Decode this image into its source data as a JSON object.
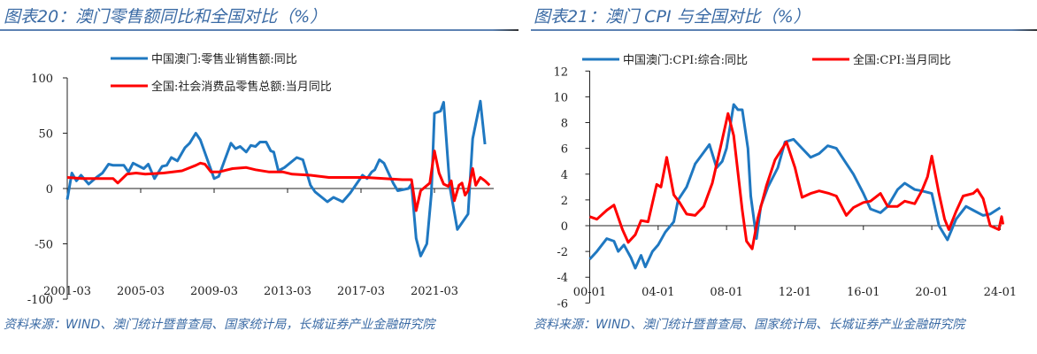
{
  "chart_data": [
    {
      "type": "line",
      "title": "图表20：澳门零售额同比和全国对比（%）",
      "source": "资料来源：WIND、澳门统计暨普查局、国家统计局，长城证券产业金融研究院",
      "xlabel": "",
      "ylabel": "",
      "ylim": [
        -100,
        100
      ],
      "yticks": [
        100,
        50,
        0,
        -50,
        -100
      ],
      "xticks": [
        "2001-03",
        "2005-03",
        "2009-03",
        "2013-03",
        "2017-03",
        "2021-03"
      ],
      "grid": false,
      "legend": "top-left",
      "series": [
        {
          "name": "中国澳门:零售业销售额:同比",
          "color": "#1f78c1",
          "points": [
            [
              "2001-03",
              -10
            ],
            [
              "2001-06",
              14
            ],
            [
              "2001-09",
              7
            ],
            [
              "2001-12",
              12
            ],
            [
              "2002-05",
              4
            ],
            [
              "2002-10",
              10
            ],
            [
              "2003-02",
              14
            ],
            [
              "2003-06",
              22
            ],
            [
              "2003-09",
              21
            ],
            [
              "2004-04",
              21
            ],
            [
              "2004-07",
              15
            ],
            [
              "2004-10",
              23
            ],
            [
              "2005-05",
              18
            ],
            [
              "2005-08",
              22
            ],
            [
              "2005-12",
              9
            ],
            [
              "2006-05",
              20
            ],
            [
              "2006-08",
              21
            ],
            [
              "2006-11",
              28
            ],
            [
              "2007-03",
              25
            ],
            [
              "2007-08",
              37
            ],
            [
              "2007-11",
              41
            ],
            [
              "2008-03",
              50
            ],
            [
              "2008-06",
              44
            ],
            [
              "2009-03",
              9
            ],
            [
              "2009-06",
              11
            ],
            [
              "2010-02",
              41
            ],
            [
              "2010-05",
              36
            ],
            [
              "2010-08",
              38
            ],
            [
              "2010-12",
              33
            ],
            [
              "2011-03",
              39
            ],
            [
              "2011-06",
              38
            ],
            [
              "2011-09",
              42
            ],
            [
              "2012-01",
              42
            ],
            [
              "2012-04",
              34
            ],
            [
              "2012-06",
              33
            ],
            [
              "2012-09",
              16
            ],
            [
              "2013-01",
              19
            ],
            [
              "2013-09",
              28
            ],
            [
              "2014-01",
              26
            ],
            [
              "2014-06",
              3
            ],
            [
              "2014-09",
              -3
            ],
            [
              "2015-05",
              -12
            ],
            [
              "2015-09",
              -8
            ],
            [
              "2016-03",
              -12
            ],
            [
              "2016-08",
              -4
            ],
            [
              "2017-04",
              12
            ],
            [
              "2017-07",
              9
            ],
            [
              "2017-10",
              15
            ],
            [
              "2017-12",
              17
            ],
            [
              "2018-03",
              26
            ],
            [
              "2018-06",
              23
            ],
            [
              "2018-12",
              5
            ],
            [
              "2019-03",
              -2
            ],
            [
              "2019-10",
              0
            ],
            [
              "2019-12",
              4
            ],
            [
              "2020-03",
              -45
            ],
            [
              "2020-06",
              -61
            ],
            [
              "2020-10",
              -50
            ],
            [
              "2021-01",
              -5
            ],
            [
              "2021-03",
              68
            ],
            [
              "2021-07",
              70
            ],
            [
              "2021-09",
              78
            ],
            [
              "2022-01",
              2
            ],
            [
              "2022-06",
              -37
            ],
            [
              "2023-01",
              -23
            ],
            [
              "2023-04",
              45
            ],
            [
              "2023-09",
              79
            ],
            [
              "2023-12",
              40
            ]
          ]
        },
        {
          "name": "全国:社会消费品零售总额:当月同比",
          "color": "#ff0000",
          "points": [
            [
              "2001-03",
              10
            ],
            [
              "2002-01",
              9
            ],
            [
              "2003-01",
              9
            ],
            [
              "2003-09",
              9
            ],
            [
              "2003-12",
              5
            ],
            [
              "2004-06",
              13
            ],
            [
              "2004-12",
              14
            ],
            [
              "2005-06",
              13
            ],
            [
              "2006-06",
              14
            ],
            [
              "2007-06",
              16
            ],
            [
              "2008-03",
              21
            ],
            [
              "2008-06",
              23
            ],
            [
              "2008-09",
              22
            ],
            [
              "2009-01",
              15
            ],
            [
              "2009-06",
              15
            ],
            [
              "2010-03",
              18
            ],
            [
              "2010-12",
              19
            ],
            [
              "2011-06",
              17
            ],
            [
              "2012-03",
              15
            ],
            [
              "2012-12",
              15
            ],
            [
              "2013-06",
              13
            ],
            [
              "2014-06",
              12
            ],
            [
              "2015-06",
              10
            ],
            [
              "2016-06",
              10
            ],
            [
              "2017-06",
              10
            ],
            [
              "2018-06",
              9
            ],
            [
              "2019-06",
              8
            ],
            [
              "2019-12",
              8
            ],
            [
              "2020-03",
              -20
            ],
            [
              "2020-06",
              -2
            ],
            [
              "2020-12",
              5
            ],
            [
              "2021-03",
              34
            ],
            [
              "2021-06",
              14
            ],
            [
              "2021-09",
              4
            ],
            [
              "2021-12",
              2
            ],
            [
              "2022-02",
              7
            ],
            [
              "2022-04",
              -11
            ],
            [
              "2022-07",
              3
            ],
            [
              "2022-09",
              5
            ],
            [
              "2022-11",
              -6
            ],
            [
              "2023-01",
              -2
            ],
            [
              "2023-04",
              18
            ],
            [
              "2023-06",
              3
            ],
            [
              "2023-09",
              10
            ],
            [
              "2023-12",
              7
            ],
            [
              "2024-03",
              3
            ]
          ]
        }
      ]
    },
    {
      "type": "line",
      "title": "图表21：澳门 CPI 与全国对比（%）",
      "source": "资料来源：WIND、澳门统计暨普查局、国家统计局、长城证券产业金融研究院",
      "xlabel": "",
      "ylabel": "",
      "ylim": [
        -6,
        12
      ],
      "yticks": [
        12,
        10,
        8,
        6,
        4,
        2,
        0,
        -2,
        -4,
        -6
      ],
      "xticks": [
        "00-01",
        "04-01",
        "08-01",
        "12-01",
        "16-01",
        "20-01",
        "24-01"
      ],
      "grid": false,
      "legend": "top",
      "series": [
        {
          "name": "中国澳门:CPI:综合:同比",
          "color": "#1f78c1",
          "points": [
            [
              "2000-01",
              -2.6
            ],
            [
              "2000-06",
              -2
            ],
            [
              "2001-01",
              -1
            ],
            [
              "2001-06",
              -1.2
            ],
            [
              "2001-09",
              -2
            ],
            [
              "2002-01",
              -1.5
            ],
            [
              "2002-06",
              -2.5
            ],
            [
              "2002-09",
              -3.3
            ],
            [
              "2003-01",
              -2.3
            ],
            [
              "2003-04",
              -3.2
            ],
            [
              "2003-09",
              -2
            ],
            [
              "2004-01",
              -1.5
            ],
            [
              "2004-06",
              -0.5
            ],
            [
              "2004-12",
              0.3
            ],
            [
              "2005-03",
              2
            ],
            [
              "2005-09",
              3
            ],
            [
              "2006-03",
              4.8
            ],
            [
              "2006-09",
              5.7
            ],
            [
              "2007-01",
              6.3
            ],
            [
              "2007-06",
              4.5
            ],
            [
              "2007-10",
              5
            ],
            [
              "2008-01",
              6
            ],
            [
              "2008-06",
              9.4
            ],
            [
              "2008-09",
              9
            ],
            [
              "2008-12",
              9
            ],
            [
              "2009-04",
              6
            ],
            [
              "2009-06",
              2.3
            ],
            [
              "2009-10",
              -1
            ],
            [
              "2010-01",
              1.5
            ],
            [
              "2010-06",
              3
            ],
            [
              "2011-01",
              4.5
            ],
            [
              "2011-06",
              6.5
            ],
            [
              "2011-12",
              6.7
            ],
            [
              "2012-06",
              6
            ],
            [
              "2012-12",
              5.3
            ],
            [
              "2013-06",
              5.6
            ],
            [
              "2013-12",
              6.2
            ],
            [
              "2014-06",
              6
            ],
            [
              "2014-12",
              5
            ],
            [
              "2015-06",
              4
            ],
            [
              "2016-01",
              2.5
            ],
            [
              "2016-06",
              1.3
            ],
            [
              "2017-01",
              1
            ],
            [
              "2017-06",
              1.5
            ],
            [
              "2018-01",
              2.8
            ],
            [
              "2018-06",
              3.3
            ],
            [
              "2019-01",
              2.8
            ],
            [
              "2019-06",
              2.7
            ],
            [
              "2020-01",
              2.5
            ],
            [
              "2020-06",
              0
            ],
            [
              "2020-12",
              -1.1
            ],
            [
              "2021-06",
              0.5
            ],
            [
              "2022-01",
              1.5
            ],
            [
              "2022-06",
              1.2
            ],
            [
              "2023-01",
              0.8
            ],
            [
              "2023-06",
              0.9
            ],
            [
              "2024-01",
              1.4
            ]
          ]
        },
        {
          "name": "全国:CPI:当月同比",
          "color": "#ff0000",
          "points": [
            [
              "2000-01",
              0.7
            ],
            [
              "2000-06",
              0.5
            ],
            [
              "2001-01",
              1.2
            ],
            [
              "2001-06",
              1.6
            ],
            [
              "2001-12",
              -0.3
            ],
            [
              "2002-04",
              -1.3
            ],
            [
              "2002-09",
              -0.7
            ],
            [
              "2003-01",
              0.4
            ],
            [
              "2003-06",
              0.3
            ],
            [
              "2003-12",
              3.2
            ],
            [
              "2004-03",
              3
            ],
            [
              "2004-07",
              5.3
            ],
            [
              "2004-12",
              2.4
            ],
            [
              "2005-04",
              1.8
            ],
            [
              "2005-09",
              0.9
            ],
            [
              "2006-03",
              0.8
            ],
            [
              "2006-09",
              1.5
            ],
            [
              "2007-03",
              3.3
            ],
            [
              "2007-09",
              6.2
            ],
            [
              "2008-02",
              8.7
            ],
            [
              "2008-06",
              7
            ],
            [
              "2008-12",
              1.2
            ],
            [
              "2009-03",
              -1.2
            ],
            [
              "2009-07",
              -1.8
            ],
            [
              "2009-11",
              0.6
            ],
            [
              "2010-05",
              3.1
            ],
            [
              "2010-11",
              5.1
            ],
            [
              "2011-07",
              6.5
            ],
            [
              "2012-01",
              4.5
            ],
            [
              "2012-06",
              2.2
            ],
            [
              "2012-12",
              2.5
            ],
            [
              "2013-06",
              2.7
            ],
            [
              "2014-01",
              2.5
            ],
            [
              "2014-06",
              2.3
            ],
            [
              "2015-01",
              0.8
            ],
            [
              "2015-06",
              1.4
            ],
            [
              "2016-01",
              1.8
            ],
            [
              "2016-06",
              1.9
            ],
            [
              "2017-01",
              2.5
            ],
            [
              "2017-06",
              1.5
            ],
            [
              "2018-01",
              1.5
            ],
            [
              "2018-06",
              1.9
            ],
            [
              "2019-01",
              1.7
            ],
            [
              "2019-06",
              2.7
            ],
            [
              "2019-10",
              3.8
            ],
            [
              "2020-01",
              5.4
            ],
            [
              "2020-06",
              2.5
            ],
            [
              "2020-10",
              0.5
            ],
            [
              "2021-01",
              -0.3
            ],
            [
              "2021-06",
              1.1
            ],
            [
              "2021-11",
              2.3
            ],
            [
              "2022-06",
              2.5
            ],
            [
              "2022-09",
              2.8
            ],
            [
              "2023-01",
              2.1
            ],
            [
              "2023-06",
              0
            ],
            [
              "2023-12",
              -0.3
            ],
            [
              "2024-02",
              0.7
            ],
            [
              "2024-03",
              0.1
            ]
          ]
        }
      ]
    }
  ]
}
